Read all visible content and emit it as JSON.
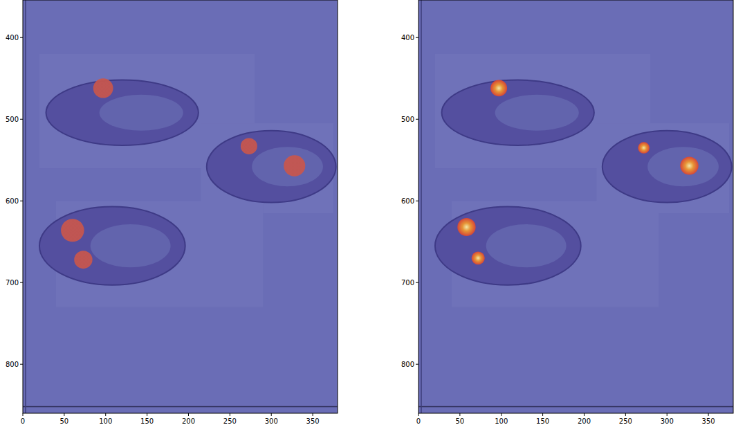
{
  "chart_data": [
    {
      "type": "image",
      "xlim": [
        0,
        380
      ],
      "ylim": [
        860,
        354
      ],
      "xticks": [
        0,
        50,
        100,
        150,
        200,
        250,
        300,
        350
      ],
      "yticks": [
        400,
        500,
        600,
        700,
        800
      ],
      "color": "#c9564c",
      "tissue": [
        {
          "cx": 120,
          "cy": 492,
          "rx": 92,
          "ry": 40
        },
        {
          "cx": 300,
          "cy": 558,
          "rx": 78,
          "ry": 44
        },
        {
          "cx": 108,
          "cy": 655,
          "rx": 88,
          "ry": 48
        }
      ],
      "regions": [
        {
          "x": 97,
          "y": 462,
          "r": 12
        },
        {
          "x": 273,
          "y": 533,
          "r": 10
        },
        {
          "x": 328,
          "y": 557,
          "r": 13
        },
        {
          "x": 60,
          "y": 636,
          "r": 14
        },
        {
          "x": 73,
          "y": 672,
          "r": 11
        }
      ]
    },
    {
      "type": "image",
      "xlim": [
        0,
        380
      ],
      "ylim": [
        860,
        354
      ],
      "xticks": [
        0,
        50,
        100,
        150,
        200,
        250,
        300,
        350
      ],
      "yticks": [
        400,
        500,
        600,
        700,
        800
      ],
      "color": "#e0452f",
      "tissue": [
        {
          "cx": 120,
          "cy": 492,
          "rx": 92,
          "ry": 40
        },
        {
          "cx": 300,
          "cy": 558,
          "rx": 78,
          "ry": 44
        },
        {
          "cx": 108,
          "cy": 655,
          "rx": 88,
          "ry": 48
        }
      ],
      "regions": [
        {
          "x": 97,
          "y": 462,
          "r": 10
        },
        {
          "x": 272,
          "y": 535,
          "r": 7
        },
        {
          "x": 327,
          "y": 557,
          "r": 11
        },
        {
          "x": 58,
          "y": 632,
          "r": 11
        },
        {
          "x": 72,
          "y": 670,
          "r": 8
        }
      ]
    }
  ]
}
